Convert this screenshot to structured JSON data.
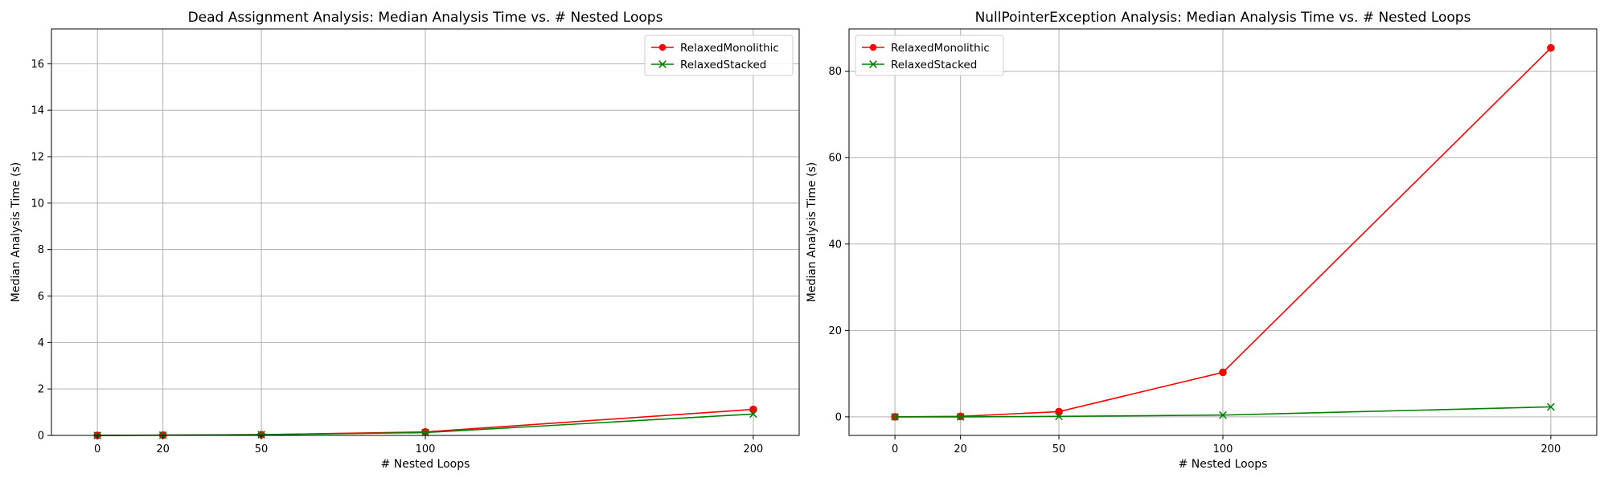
{
  "chart_data": [
    {
      "type": "line",
      "title": "Dead Assignment Analysis: Median Analysis Time vs. # Nested Loops",
      "xlabel": "# Nested Loops",
      "ylabel": "Median Analysis Time (s)",
      "x": [
        0,
        20,
        50,
        100,
        200
      ],
      "xticks": [
        0,
        20,
        50,
        100,
        200
      ],
      "xlim": [
        -14,
        214
      ],
      "ylim": [
        0,
        17.5
      ],
      "yticks": [
        0,
        2,
        4,
        6,
        8,
        10,
        12,
        14,
        16
      ],
      "grid": true,
      "legend_position": "upper right",
      "series": [
        {
          "name": "RelaxedMonolithic",
          "color": "#ff0000",
          "marker": "circle",
          "values": [
            0.0,
            0.01,
            0.03,
            0.15,
            1.12
          ]
        },
        {
          "name": "RelaxedStacked",
          "color": "#008000",
          "marker": "x",
          "values": [
            0.0,
            0.01,
            0.03,
            0.12,
            0.92
          ]
        }
      ]
    },
    {
      "type": "line",
      "title": "NullPointerException Analysis: Median Analysis Time vs. # Nested Loops",
      "xlabel": "# Nested Loops",
      "ylabel": "Median Analysis Time (s)",
      "x": [
        0,
        20,
        50,
        100,
        200
      ],
      "xticks": [
        0,
        20,
        50,
        100,
        200
      ],
      "xlim": [
        -14,
        214
      ],
      "ylim": [
        -4.3,
        89.8
      ],
      "yticks": [
        0,
        20,
        40,
        60,
        80
      ],
      "grid": true,
      "legend_position": "upper left",
      "series": [
        {
          "name": "RelaxedMonolithic",
          "color": "#ff0000",
          "marker": "circle",
          "values": [
            0.0,
            0.1,
            1.2,
            10.3,
            85.4
          ]
        },
        {
          "name": "RelaxedStacked",
          "color": "#008000",
          "marker": "x",
          "values": [
            0.0,
            0.0,
            0.1,
            0.4,
            2.3
          ]
        }
      ]
    }
  ]
}
